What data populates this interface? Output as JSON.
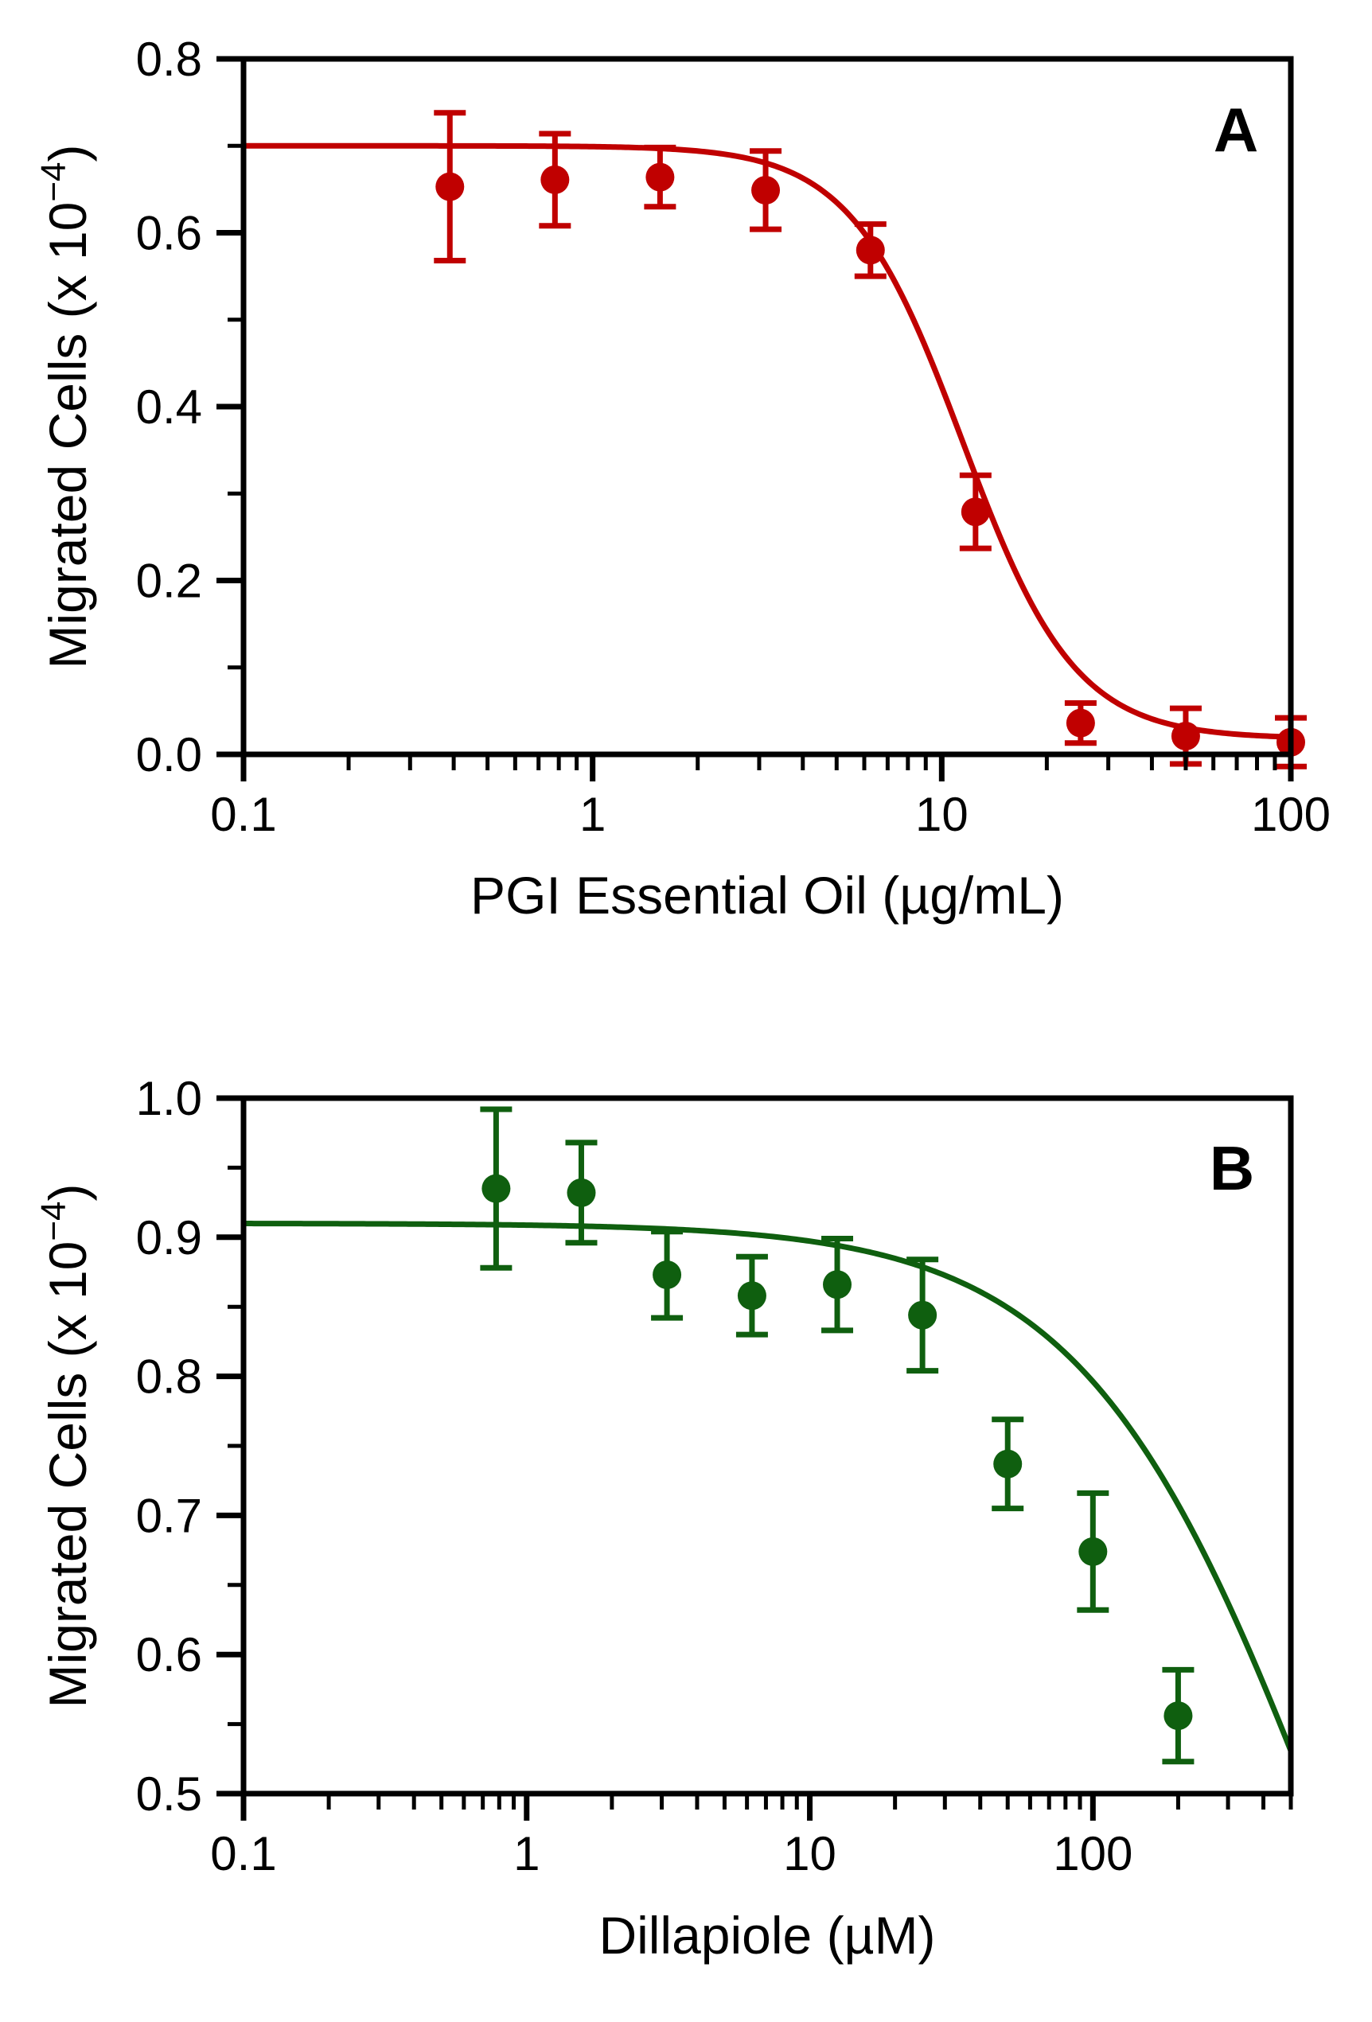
{
  "chart_data": [
    {
      "type": "scatter",
      "panel_label": "A",
      "xlabel": "PGI Essential Oil (µg/mL)",
      "ylabel": "Migrated Cells (x 10",
      "ylabel_sup": "−4",
      "ylabel_close": ")",
      "x_scale": "log",
      "xlim": [
        0.1,
        100
      ],
      "ylim": [
        0,
        0.8
      ],
      "x_ticks": [
        0.1,
        1,
        10,
        100
      ],
      "x_tick_labels": [
        "0.1",
        "1",
        "10",
        "100"
      ],
      "y_ticks": [
        0,
        0.2,
        0.4,
        0.6,
        0.8
      ],
      "y_tick_labels": [
        "0.0",
        "0.2",
        "0.4",
        "0.6",
        "0.8"
      ],
      "grid": false,
      "color": "#c00000",
      "series": [
        {
          "x": [
            0.39,
            0.78,
            1.56,
            3.13,
            6.25,
            12.5,
            25,
            50,
            100
          ],
          "y": [
            0.653,
            0.661,
            0.664,
            0.649,
            0.58,
            0.279,
            0.036,
            0.021,
            0.014
          ],
          "err": [
            0.085,
            0.053,
            0.034,
            0.045,
            0.03,
            0.042,
            0.023,
            0.032,
            0.028
          ]
        }
      ],
      "fit": {
        "top": 0.7,
        "bottom": 0.018,
        "ec50": 11.5,
        "hill": 2.7
      }
    },
    {
      "type": "scatter",
      "panel_label": "B",
      "xlabel": "Dillapiole (µM)",
      "ylabel": "Migrated Cells (x 10",
      "ylabel_sup": "−4",
      "ylabel_close": ")",
      "x_scale": "log",
      "xlim": [
        0.1,
        500
      ],
      "ylim": [
        0.5,
        1.0
      ],
      "x_ticks": [
        0.1,
        1,
        10,
        100
      ],
      "x_tick_labels": [
        "0.1",
        "1",
        "10",
        "100"
      ],
      "y_ticks": [
        0.5,
        0.6,
        0.7,
        0.8,
        0.9,
        1.0
      ],
      "y_tick_labels": [
        "0.5",
        "0.6",
        "0.7",
        "0.8",
        "0.9",
        "1.0"
      ],
      "grid": false,
      "color": "#0f5f0f",
      "series": [
        {
          "x": [
            0.78,
            1.56,
            3.13,
            6.25,
            12.5,
            25,
            50,
            100,
            200
          ],
          "y": [
            0.935,
            0.932,
            0.873,
            0.858,
            0.866,
            0.844,
            0.737,
            0.674,
            0.556
          ],
          "err": [
            0.057,
            0.036,
            0.031,
            0.028,
            0.033,
            0.04,
            0.032,
            0.042,
            0.033
          ]
        }
      ],
      "fit": {
        "top": 0.91,
        "bottom": 0.0,
        "ec50": 700,
        "hill": 1.0
      }
    }
  ]
}
